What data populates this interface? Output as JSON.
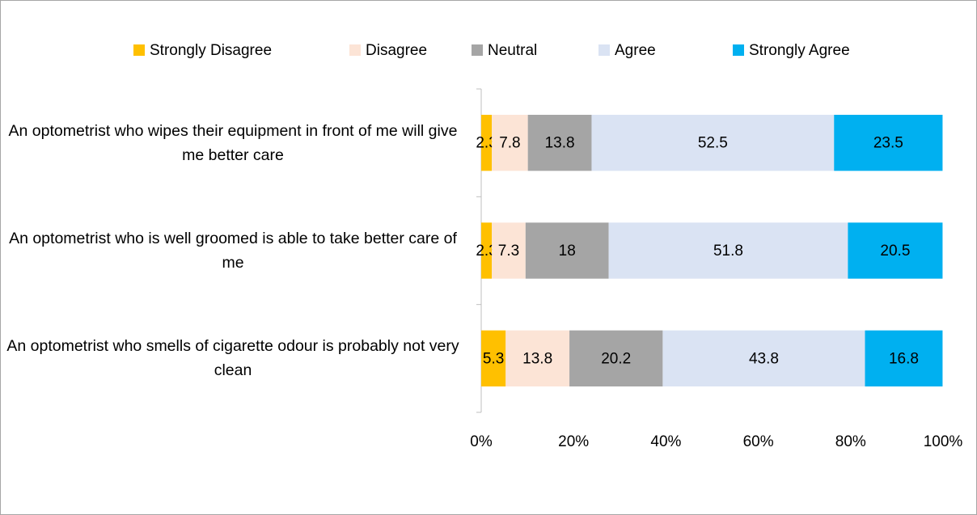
{
  "chart_data": {
    "type": "stacked-bar-horizontal",
    "categories": [
      "An optometrist who wipes their equipment in front of me will give me better care",
      "An optometrist who is well groomed is able to take better care of me",
      "An optometrist who smells of cigarette odour is probably not very clean"
    ],
    "series": [
      {
        "name": "Strongly Disagree",
        "color": "#ffc000",
        "values": [
          2.3,
          2.3,
          5.3
        ]
      },
      {
        "name": "Disagree",
        "color": "#fce4d6",
        "values": [
          7.8,
          7.3,
          13.8
        ]
      },
      {
        "name": "Neutral",
        "color": "#a5a5a5",
        "values": [
          13.8,
          18,
          20.2
        ]
      },
      {
        "name": "Agree",
        "color": "#dae3f3",
        "values": [
          52.5,
          51.8,
          43.8
        ]
      },
      {
        "name": "Strongly Agree",
        "color": "#00b0f0",
        "values": [
          23.5,
          20.5,
          16.8
        ]
      }
    ],
    "xlim": [
      0,
      100
    ],
    "xticks": [
      {
        "value": 0,
        "label": "0%"
      },
      {
        "value": 20,
        "label": "20%"
      },
      {
        "value": 40,
        "label": "40%"
      },
      {
        "value": 60,
        "label": "60%"
      },
      {
        "value": 80,
        "label": "80%"
      },
      {
        "value": 100,
        "label": "100%"
      }
    ],
    "legend": "top"
  }
}
